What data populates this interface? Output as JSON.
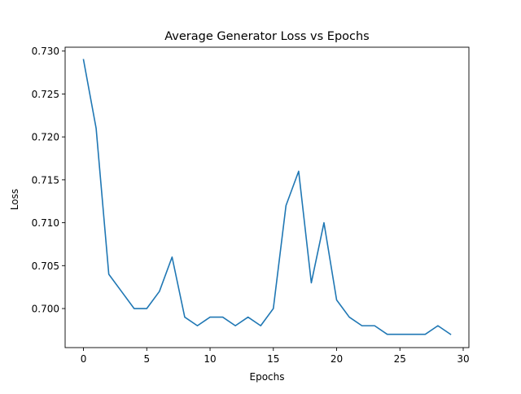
{
  "chart_data": {
    "type": "line",
    "title": "Average Generator Loss vs Epochs",
    "xlabel": "Epochs",
    "ylabel": "Loss",
    "xlim": [
      -1.45,
      30.45
    ],
    "ylim": [
      0.69545,
      0.73045
    ],
    "xticks": [
      0,
      5,
      10,
      15,
      20,
      25,
      30
    ],
    "xtick_labels": [
      "0",
      "5",
      "10",
      "15",
      "20",
      "25",
      "30"
    ],
    "yticks": [
      0.7,
      0.705,
      0.71,
      0.715,
      0.72,
      0.725,
      0.73
    ],
    "ytick_labels": [
      "0.700",
      "0.705",
      "0.710",
      "0.715",
      "0.720",
      "0.725",
      "0.730"
    ],
    "grid": false,
    "legend": "none",
    "series": [
      {
        "color": "#1f77b4",
        "x": [
          0,
          1,
          2,
          3,
          4,
          5,
          6,
          7,
          8,
          9,
          10,
          11,
          12,
          13,
          14,
          15,
          16,
          17,
          18,
          19,
          20,
          21,
          22,
          23,
          24,
          25,
          26,
          27,
          28,
          29
        ],
        "values": [
          0.729,
          0.721,
          0.704,
          0.702,
          0.7,
          0.7,
          0.702,
          0.706,
          0.699,
          0.698,
          0.699,
          0.699,
          0.698,
          0.699,
          0.698,
          0.7,
          0.712,
          0.716,
          0.703,
          0.71,
          0.701,
          0.699,
          0.698,
          0.698,
          0.697,
          0.697,
          0.697,
          0.697,
          0.698,
          0.697
        ]
      }
    ]
  }
}
